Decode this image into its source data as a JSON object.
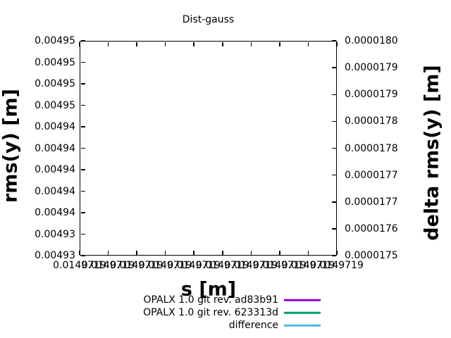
{
  "title": "Dist-gauss",
  "axes": {
    "x": {
      "label": "s [m]",
      "tick_labels": [
        "0.0149719",
        "0.0149719",
        "0.0149719",
        "0.0149719",
        "0.0149719",
        "0.0149719",
        "0.0149719",
        "0.0149719",
        "0.0149719",
        "0.0149719"
      ]
    },
    "y_left": {
      "label": "rms(y) [m]",
      "tick_labels": [
        "0.00495",
        "0.00495",
        "0.00495",
        "0.00495",
        "0.00494",
        "0.00494",
        "0.00494",
        "0.00494",
        "0.00494",
        "0.00493",
        "0.00493"
      ]
    },
    "y_right": {
      "label": "delta rms(y) [m]",
      "tick_labels": [
        "0.0000180",
        "0.0000179",
        "0.0000179",
        "0.0000178",
        "0.0000178",
        "0.0000177",
        "0.0000177",
        "0.0000176",
        "0.0000175"
      ]
    }
  },
  "legend": {
    "entries": [
      {
        "label": "OPALX 1.0 git rev. ad83b91",
        "color": "#9400d3"
      },
      {
        "label": "OPALX 1.0 git rev. 623313d",
        "color": "#009e73"
      },
      {
        "label": "difference",
        "color": "#56b4e9"
      }
    ]
  },
  "colors": {
    "axis": "#000000",
    "background": "#ffffff",
    "series_purple": "#9400d3",
    "series_green": "#009e73",
    "series_skyblue": "#56b4e9"
  },
  "chart_data": {
    "type": "line",
    "title": "Dist-gauss",
    "xlabel": "s [m]",
    "ylabel": "rms(y) [m]",
    "y2label": "delta rms(y) [m]",
    "x_tick_labels": [
      "0.0149719",
      "0.0149719",
      "0.0149719",
      "0.0149719",
      "0.0149719",
      "0.0149719",
      "0.0149719",
      "0.0149719",
      "0.0149719",
      "0.0149719"
    ],
    "x_range_approx": [
      0.0149719,
      0.0149719
    ],
    "ylim": [
      0.00493,
      0.00495
    ],
    "y2lim": [
      1.75e-05,
      1.8e-05
    ],
    "y_tick_labels": [
      "0.00495",
      "0.00495",
      "0.00495",
      "0.00495",
      "0.00494",
      "0.00494",
      "0.00494",
      "0.00494",
      "0.00494",
      "0.00493",
      "0.00493"
    ],
    "y2_tick_labels": [
      "0.0000180",
      "0.0000179",
      "0.0000179",
      "0.0000178",
      "0.0000178",
      "0.0000177",
      "0.0000177",
      "0.0000176",
      "0.0000175"
    ],
    "grid": false,
    "legend_position": "below-plot",
    "series": [
      {
        "name": "OPALX 1.0 git rev. ad83b91",
        "color": "#9400d3",
        "axis": "y1",
        "values": []
      },
      {
        "name": "OPALX 1.0 git rev. 623313d",
        "color": "#009e73",
        "axis": "y1",
        "values": []
      },
      {
        "name": "difference",
        "color": "#56b4e9",
        "axis": "y2",
        "values": []
      }
    ],
    "note_visible_data": "plot area is empty; no curve pixels are visible"
  }
}
